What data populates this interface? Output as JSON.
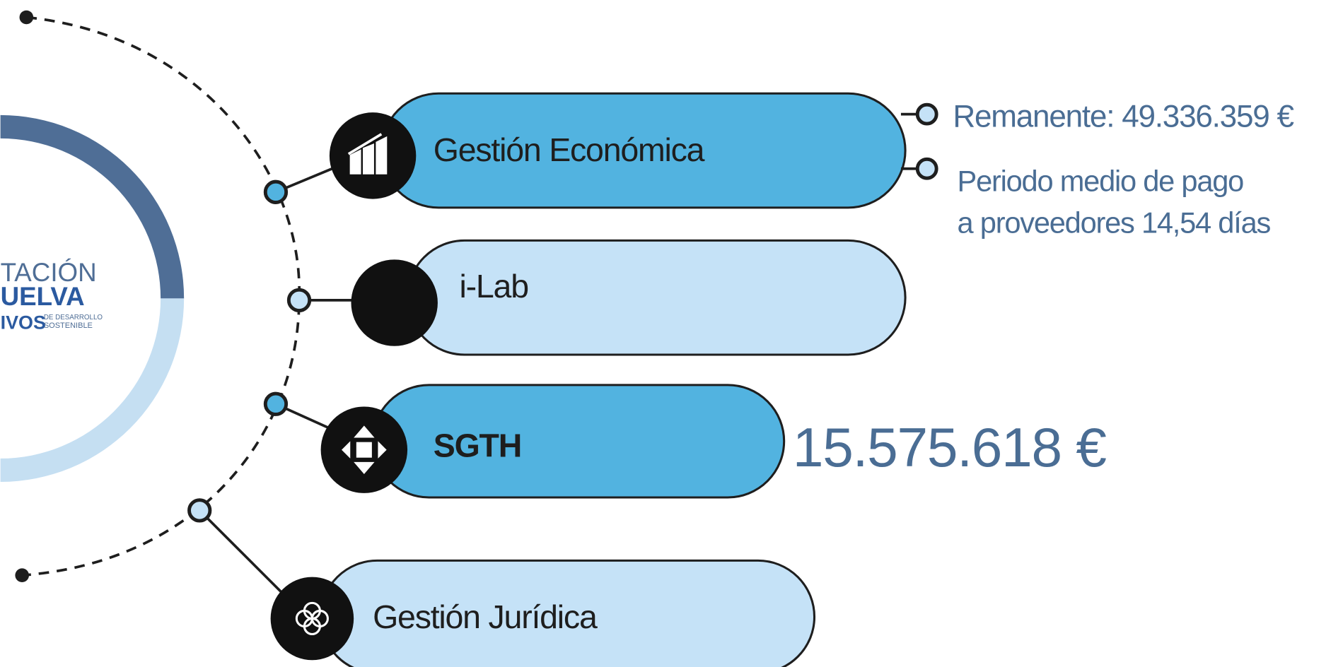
{
  "logo": {
    "lines": [
      "TACIÓN",
      "UELVA",
      "IVOS",
      "DE DESARROLLO",
      "SOSTENIBLE"
    ]
  },
  "items": [
    {
      "label": "Gestión Económica"
    },
    {
      "label": "i-Lab"
    },
    {
      "label": "SGTH"
    },
    {
      "label": "Gestión Jurídica"
    }
  ],
  "annotations": {
    "remanente": "Remanente: 49.336.359 €",
    "periodo_line1": "Periodo medio de pago",
    "periodo_line2": "a proveedores 14,54 días",
    "sgth_amount": "15.575.618 €"
  }
}
